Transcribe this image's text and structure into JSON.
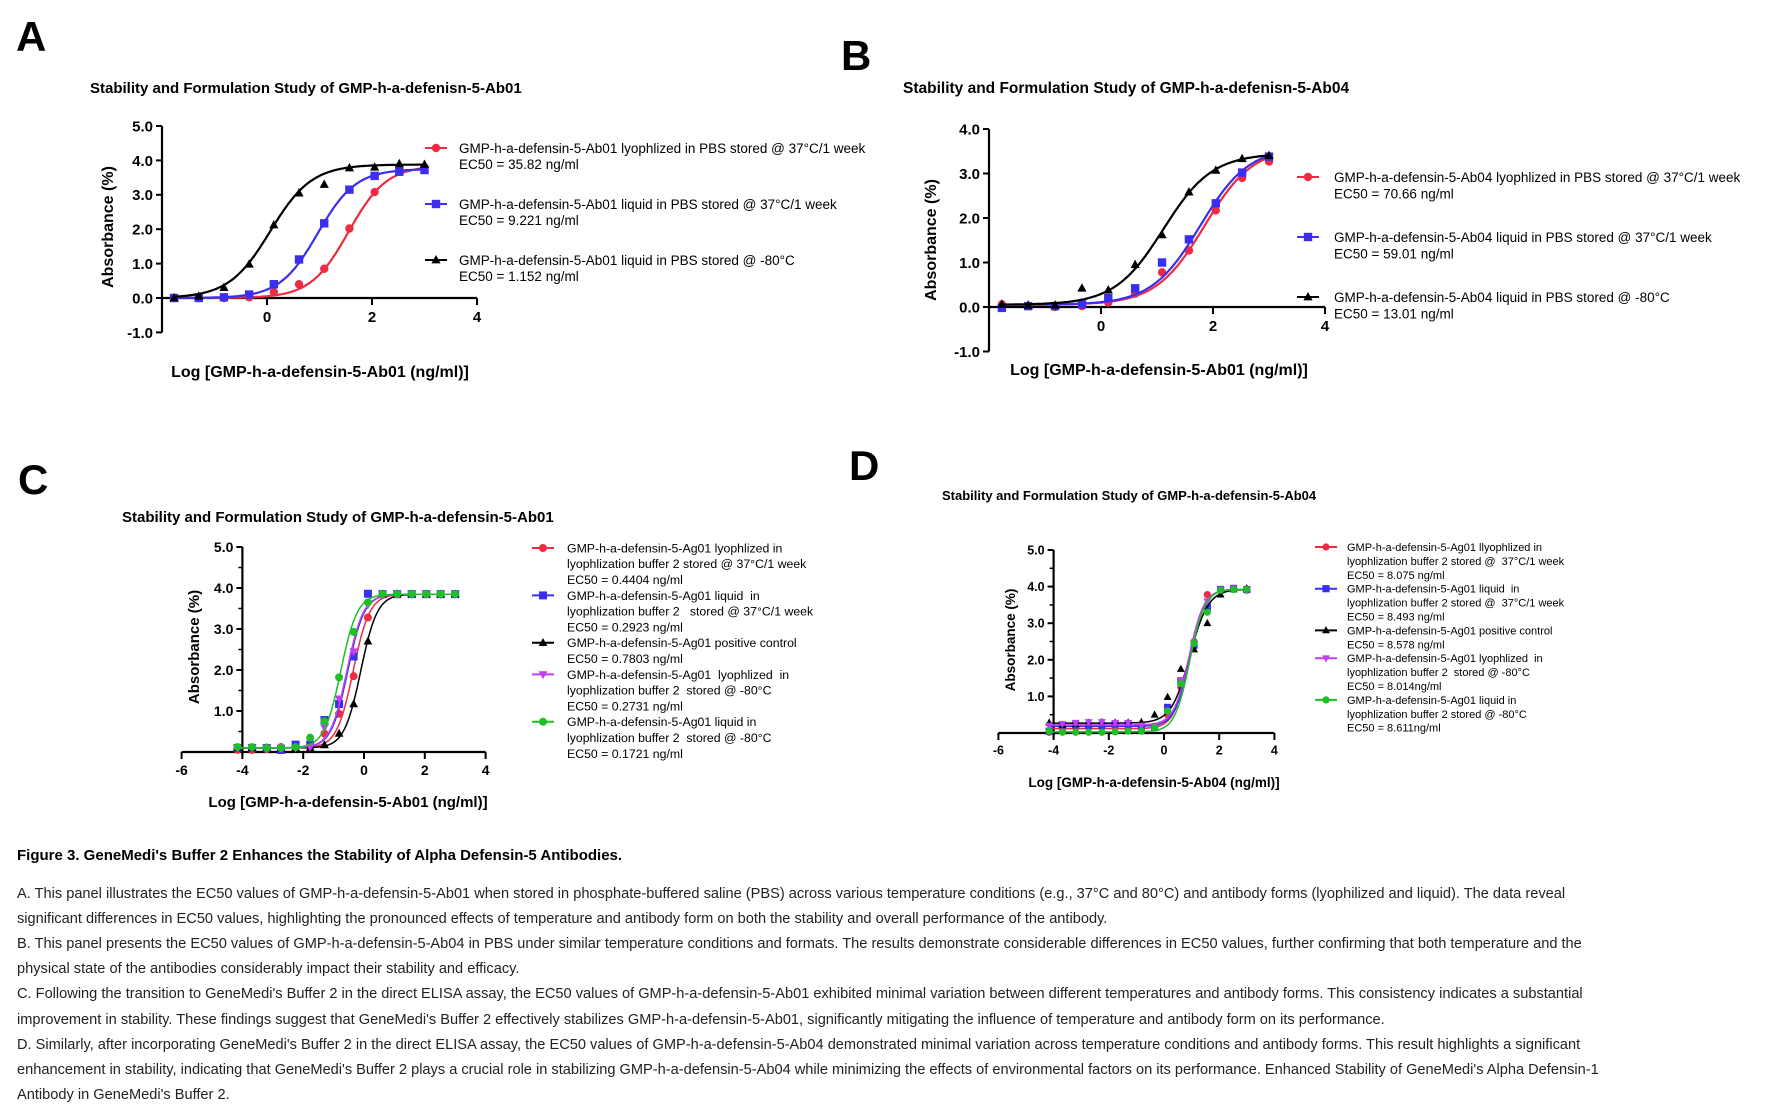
{
  "panel_letters": [
    "A",
    "B",
    "C",
    "D"
  ],
  "chart_data": [
    {
      "type": "scatter",
      "title": "Stability and Formulation Study of GMP-h-a-defenisn-5-Ab01",
      "xlabel": "Log [GMP-h-a-defensin-5-Ab01 (ng/ml)]",
      "ylabel": "Absorbance (%)",
      "xlim": [
        -2,
        4
      ],
      "ylim": [
        -1,
        5
      ],
      "xticks": [
        {
          "v": 0,
          "label": "0"
        },
        {
          "v": 2,
          "label": "2"
        },
        {
          "v": 4,
          "label": "4"
        }
      ],
      "yticks": [
        {
          "v": -1,
          "label": "-1.0"
        },
        {
          "v": 0,
          "label": "0.0"
        },
        {
          "v": 1,
          "label": "1.0"
        },
        {
          "v": 2,
          "label": "2.0"
        },
        {
          "v": 3,
          "label": "3.0"
        },
        {
          "v": 4,
          "label": "4.0"
        },
        {
          "v": 5,
          "label": "5.0"
        }
      ],
      "legend_position": "right",
      "x": [
        -1.77,
        -1.3,
        -0.82,
        -0.34,
        0.13,
        0.61,
        1.09,
        1.57,
        2.05,
        2.52,
        3.0
      ],
      "series": [
        {
          "name_lines": [
            "GMP-h-a-defensin-5-Ab01 lyophlized in PBS stored @ 37°C/1 week"
          ],
          "ec50_label": "EC50 = 35.82 ng/ml",
          "marker": "circle",
          "color": "#ee2b40",
          "values": [
            0,
            0,
            0,
            0.02,
            0.17,
            0.4,
            0.85,
            2.02,
            3.08,
            3.75,
            3.8
          ]
        },
        {
          "name_lines": [
            "GMP-h-a-defensin-5-Ab01 liquid in PBS stored @ 37°C/1 week"
          ],
          "ec50_label": "EC50 = 9.221 ng/ml",
          "marker": "square",
          "color": "#3b2ef0",
          "values": [
            0,
            0,
            0.02,
            0.1,
            0.4,
            1.12,
            2.17,
            3.15,
            3.55,
            3.67,
            3.72
          ]
        },
        {
          "name_lines": [
            "GMP-h-a-defensin-5-Ab01 liquid in PBS stored @ -80°C"
          ],
          "ec50_label": "EC50 = 1.152 ng/ml",
          "marker": "triangle-up",
          "color": "#000000",
          "values": [
            0,
            0.05,
            0.3,
            0.98,
            2.12,
            3.05,
            3.3,
            3.78,
            3.8,
            3.9,
            3.88
          ]
        }
      ]
    },
    {
      "type": "scatter",
      "title": "Stability and Formulation Study of GMP-h-a-defenisn-5-Ab04",
      "xlabel": "Log [GMP-h-a-defensin-5-Ab01 (ng/ml)]",
      "ylabel": "Absorbance (%)",
      "xlim": [
        -2,
        4
      ],
      "ylim": [
        -1,
        4
      ],
      "xticks": [
        {
          "v": 0,
          "label": "0"
        },
        {
          "v": 2,
          "label": "2"
        },
        {
          "v": 4,
          "label": "4"
        }
      ],
      "yticks": [
        {
          "v": -1,
          "label": "-1.0"
        },
        {
          "v": 0,
          "label": "0.0"
        },
        {
          "v": 1,
          "label": "1.0"
        },
        {
          "v": 2,
          "label": "2.0"
        },
        {
          "v": 3,
          "label": "3.0"
        },
        {
          "v": 4,
          "label": "4.0"
        }
      ],
      "legend_position": "right",
      "x": [
        -1.77,
        -1.3,
        -0.82,
        -0.34,
        0.13,
        0.61,
        1.09,
        1.57,
        2.05,
        2.52,
        3.0
      ],
      "series": [
        {
          "name_lines": [
            "GMP-h-a-defensin-5-Ab04 lyophlized in PBS stored @ 37°C/1 week"
          ],
          "ec50_label": "EC50 = 70.66 ng/ml",
          "marker": "circle",
          "color": "#ee2b40",
          "values": [
            0.06,
            0.02,
            0.0,
            0.02,
            0.1,
            0.3,
            0.78,
            1.27,
            2.17,
            2.9,
            3.27
          ]
        },
        {
          "name_lines": [
            "GMP-h-a-defensin-5-Ab04 liquid in PBS stored @ 37°C/1 week"
          ],
          "ec50_label": "EC50 = 59.01 ng/ml",
          "marker": "square",
          "color": "#3b2ef0",
          "values": [
            -0.02,
            0.02,
            0.02,
            0.06,
            0.2,
            0.42,
            1.0,
            1.52,
            2.33,
            3.02,
            3.38
          ]
        },
        {
          "name_lines": [
            "GMP-h-a-defensin-5-Ab04 liquid in PBS stored @ -80°C"
          ],
          "ec50_label": "EC50 = 13.01 ng/ml",
          "marker": "triangle-up",
          "color": "#000000",
          "values": [
            0.06,
            0.04,
            0.04,
            0.42,
            0.38,
            0.95,
            1.62,
            2.58,
            3.07,
            3.33,
            3.4
          ]
        }
      ]
    },
    {
      "type": "scatter",
      "title": "Stability and Formulation Study of GMP-h-a-defensin-5-Ab01",
      "xlabel": "Log [GMP-h-a-defensin-5-Ab01 (ng/ml)]",
      "ylabel": "Absorbance (%)",
      "xlim": [
        -6,
        4
      ],
      "ylim": [
        0,
        5
      ],
      "xticks": [
        {
          "v": -6,
          "label": "-6"
        },
        {
          "v": -4,
          "label": "-4"
        },
        {
          "v": -2,
          "label": "-2"
        },
        {
          "v": 0,
          "label": "0"
        },
        {
          "v": 2,
          "label": "2"
        },
        {
          "v": 4,
          "label": "4"
        }
      ],
      "yticks": [
        {
          "v": 1,
          "label": "1.0"
        },
        {
          "v": 2,
          "label": "2.0"
        },
        {
          "v": 3,
          "label": "3.0"
        },
        {
          "v": 4,
          "label": "4.0"
        },
        {
          "v": 5,
          "label": "5.0"
        }
      ],
      "legend_position": "right",
      "x": [
        -4.16,
        -3.68,
        -3.2,
        -2.73,
        -2.25,
        -1.77,
        -1.3,
        -0.82,
        -0.34,
        0.13,
        0.61,
        1.09,
        1.57,
        2.05,
        2.52,
        3.0
      ],
      "series": [
        {
          "name_lines": [
            "GMP-h-a-defensin-5-Ag01 lyophlized in",
            "lyophlization buffer 2 stored @ 37°C/1 week"
          ],
          "ec50_label": "EC50 = 0.4404 ng/ml",
          "marker": "circle",
          "color": "#ee2b40",
          "values": [
            0.05,
            0.05,
            0.07,
            0.12,
            0.12,
            0.15,
            0.45,
            0.93,
            1.85,
            3.28,
            3.85,
            3.85,
            3.85,
            3.85,
            3.85,
            3.85
          ]
        },
        {
          "name_lines": [
            "GMP-h-a-defensin-5-Ag01 liquid  in",
            "lyophlization buffer 2   stored @ 37°C/1 week"
          ],
          "ec50_label": "EC50 = 0.2923 ng/ml",
          "marker": "square",
          "color": "#3b2ef0",
          "values": [
            0.1,
            0.1,
            0.1,
            0.05,
            0.18,
            0.18,
            0.78,
            1.17,
            2.33,
            3.86,
            3.85,
            3.85,
            3.85,
            3.85,
            3.85,
            3.85
          ]
        },
        {
          "name_lines": [
            "GMP-h-a-defensin-5-Ag01 positive control"
          ],
          "ec50_label": "EC50 = 0.7803 ng/ml",
          "marker": "triangle-up",
          "color": "#000000",
          "values": [
            0.1,
            0.1,
            0.1,
            0.1,
            0.1,
            0.1,
            0.17,
            0.45,
            1.17,
            2.7,
            3.85,
            3.85,
            3.85,
            3.85,
            3.85,
            3.85
          ]
        },
        {
          "name_lines": [
            "GMP-h-a-defensin-5-Ag01  lyophlized  in",
            "lyophlization buffer 2  stored @ -80°C"
          ],
          "ec50_label": "EC50 = 0.2731 ng/ml",
          "marker": "triangle-down",
          "color": "#c13ff0",
          "values": [
            0.1,
            0.1,
            0.1,
            0.1,
            0.1,
            0.12,
            0.6,
            1.3,
            2.45,
            3.6,
            3.85,
            3.85,
            3.85,
            3.85,
            3.85,
            3.85
          ]
        },
        {
          "name_lines": [
            "GMP-h-a-defensin-5-Ag01 liquid in",
            "lyophlization buffer 2  stored @ -80°C"
          ],
          "ec50_label": "EC50 = 0.1721 ng/ml",
          "marker": "circle",
          "color": "#1fbf2a",
          "values": [
            0.12,
            0.12,
            0.1,
            0.1,
            0.12,
            0.35,
            0.75,
            1.82,
            2.93,
            3.65,
            3.85,
            3.85,
            3.85,
            3.85,
            3.85,
            3.85
          ]
        }
      ]
    },
    {
      "type": "scatter",
      "title": "Stability and Formulation Study of GMP-h-a-defensin-5-Ab04",
      "xlabel": "Log [GMP-h-a-defensin-5-Ab04 (ng/ml)]",
      "ylabel": "Absorbance (%)",
      "xlim": [
        -6,
        4
      ],
      "ylim": [
        0,
        5
      ],
      "xticks": [
        {
          "v": -6,
          "label": "-6"
        },
        {
          "v": -4,
          "label": "-4"
        },
        {
          "v": -2,
          "label": "-2"
        },
        {
          "v": 0,
          "label": "0"
        },
        {
          "v": 2,
          "label": "2"
        },
        {
          "v": 4,
          "label": "4"
        }
      ],
      "yticks": [
        {
          "v": 1,
          "label": "1.0"
        },
        {
          "v": 2,
          "label": "2.0"
        },
        {
          "v": 3,
          "label": "3.0"
        },
        {
          "v": 4,
          "label": "4.0"
        },
        {
          "v": 5,
          "label": "5.0"
        }
      ],
      "legend_position": "right",
      "x": [
        -4.16,
        -3.68,
        -3.2,
        -2.73,
        -2.25,
        -1.77,
        -1.3,
        -0.82,
        -0.34,
        0.13,
        0.61,
        1.09,
        1.57,
        2.05,
        2.52,
        3.0
      ],
      "series": [
        {
          "name_lines": [
            "GMP-h-a-defensin-5-Ag01 llyophlized in",
            "lyophlization buffer 2 stored @  37°C/1 week"
          ],
          "ec50_label": "EC50 = 8.075 ng/ml",
          "marker": "circle",
          "color": "#ee2b40",
          "values": [
            0.02,
            0.05,
            0.15,
            0.2,
            0.2,
            0.15,
            0.1,
            0.08,
            0.15,
            0.5,
            1.25,
            2.5,
            3.78,
            3.92,
            3.95,
            3.9
          ]
        },
        {
          "name_lines": [
            "GMP-h-a-defensin-5-Ag01 liquid  in",
            "lyophlization buffer 2 stored @  37°C/1 week"
          ],
          "ec50_label": "EC50 = 8.493 ng/ml",
          "marker": "square",
          "color": "#3b2ef0",
          "values": [
            0.05,
            0.22,
            0.22,
            0.2,
            0.2,
            0.25,
            0.25,
            0.2,
            0.15,
            0.7,
            1.4,
            2.4,
            3.45,
            3.92,
            3.95,
            3.92
          ]
        },
        {
          "name_lines": [
            "GMP-h-a-defensin-5-Ag01 positive control"
          ],
          "ec50_label": "EC50 = 8.578 ng/ml",
          "marker": "triangle-up",
          "color": "#000000",
          "values": [
            0.28,
            0.22,
            0.25,
            0.28,
            0.3,
            0.28,
            0.28,
            0.3,
            0.5,
            0.98,
            1.75,
            2.28,
            3.0,
            3.78,
            3.92,
            3.95
          ]
        },
        {
          "name_lines": [
            "GMP-h-a-defensin-5-Ag01 lyophlized  in",
            "lyophlization buffer 2  stored @ -80°C"
          ],
          "ec50_label": "EC50 = 8.014ng/ml",
          "marker": "triangle-down",
          "color": "#c13ff0",
          "values": [
            0.2,
            0.25,
            0.28,
            0.3,
            0.3,
            0.28,
            0.28,
            0.2,
            0.15,
            0.6,
            1.45,
            2.45,
            3.6,
            3.92,
            3.95,
            3.92
          ]
        },
        {
          "name_lines": [
            "GMP-h-a-defensin-5-Ag01 liquid in",
            "lyophlization buffer 2 stored @ -80°C"
          ],
          "ec50_label": "EC50 = 8.611ng/ml",
          "marker": "circle",
          "color": "#1fbf2a",
          "values": [
            0.05,
            0.02,
            0.02,
            0.02,
            0.02,
            0.03,
            0.05,
            0.05,
            0.15,
            0.6,
            1.35,
            2.45,
            3.3,
            3.9,
            3.92,
            3.92
          ]
        }
      ]
    }
  ],
  "caption": {
    "title": "Figure 3. GeneMedi's Buffer 2 Enhances the Stability of Alpha Defensin-5 Antibodies.",
    "lines": [
      "A. This panel illustrates the EC50 values of GMP-h-a-defensin-5-Ab01 when stored in phosphate-buffered saline (PBS) across various temperature conditions (e.g., 37°C and 80°C) and antibody forms (lyophilized and liquid). The data reveal",
      "significant differences in EC50 values, highlighting the pronounced effects of temperature and antibody form on both the stability and overall performance of the antibody.",
      "B. This panel presents the EC50 values of GMP-h-a-defensin-5-Ab04 in PBS under similar temperature conditions and formats. The results demonstrate considerable differences in EC50 values, further confirming that both temperature and the",
      "physical state of the antibodies considerably impact their stability and efficacy.",
      "C. Following the transition to GeneMedi's Buffer 2 in the direct ELISA assay, the EC50 values of GMP-h-a-defensin-5-Ab01 exhibited minimal variation between different temperatures and antibody forms. This consistency indicates a substantial",
      "improvement in stability. These findings suggest that GeneMedi's Buffer 2 effectively stabilizes GMP-h-a-defensin-5-Ab01, significantly mitigating the influence of temperature and antibody form on its performance.",
      "D. Similarly, after incorporating GeneMedi's Buffer 2 in the direct ELISA assay, the EC50 values of GMP-h-a-defensin-5-Ab04 demonstrated minimal variation across temperature conditions and antibody forms. This result highlights a significant",
      "enhancement in stability, indicating that GeneMedi's Buffer 2 plays a crucial role in stabilizing GMP-h-a-defensin-5-Ab04 while minimizing the effects of environmental factors on its performance. Enhanced Stability of GeneMedi's Alpha Defensin-1",
      "Antibody in GeneMedi's Buffer 2."
    ]
  }
}
